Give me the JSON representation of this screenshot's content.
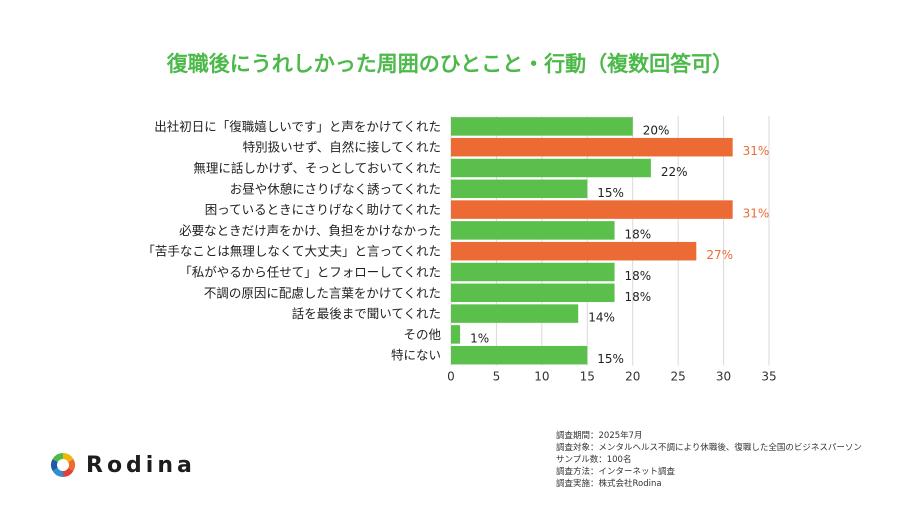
{
  "colors": {
    "title": "#4cb94a",
    "bar_default": "#5bbf4b",
    "bar_highlight": "#ec6b35",
    "value_highlight": "#ec6b35",
    "grid": "#d9d9d9"
  },
  "brand": {
    "name": "Rodina",
    "logo_icon": "rodina-logo-icon"
  },
  "notes": [
    "調査期間：2025年7月",
    "調査対象：メンタルヘルス不調により休職後、復職した全国のビジネスパーソン",
    "サンプル数：100名",
    "調査方法：インターネット調査",
    "調査実施：株式会社Rodina"
  ],
  "chart_data": {
    "type": "bar",
    "orientation": "horizontal",
    "title": "復職後にうれしかった周囲のひとこと・行動（複数回答可）",
    "categories": [
      "出社初日に「復職嬉しいです」と声をかけてくれた",
      "特別扱いせず、自然に接してくれた",
      "無理に話しかけず、そっとしておいてくれた",
      "お昼や休憩にさりげなく誘ってくれた",
      "困っているときにさりげなく助けてくれた",
      "必要なときだけ声をかけ、負担をかけなかった",
      "「苦手なことは無理しなくて大丈夫」と言ってくれた",
      "「私がやるから任せて」とフォローしてくれた",
      "不調の原因に配慮した言葉をかけてくれた",
      "話を最後まで聞いてくれた",
      "その他",
      "特にない"
    ],
    "values": [
      20,
      31,
      22,
      15,
      31,
      18,
      27,
      18,
      18,
      14,
      1,
      15
    ],
    "value_labels": [
      "20%",
      "31%",
      "22%",
      "15%",
      "31%",
      "18%",
      "27%",
      "18%",
      "18%",
      "14%",
      "1%",
      "15%"
    ],
    "highlighted": [
      false,
      true,
      false,
      false,
      true,
      false,
      true,
      false,
      false,
      false,
      false,
      false
    ],
    "xlim": [
      0,
      35
    ],
    "xticks": [
      0,
      5,
      10,
      15,
      20,
      25,
      30,
      35
    ],
    "grid": true
  }
}
